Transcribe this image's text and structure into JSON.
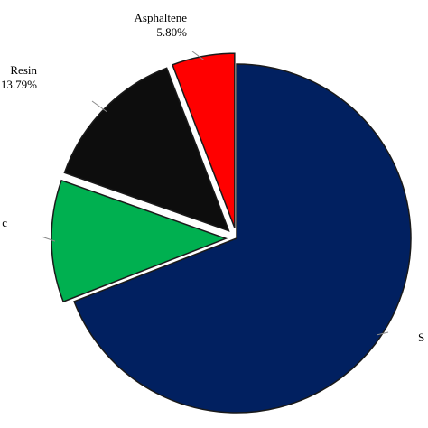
{
  "chart_data": {
    "type": "pie",
    "slices": [
      {
        "name": "Saturate",
        "value": 69.1,
        "label": "S",
        "value_label": "",
        "color": "#012060",
        "exploded": false
      },
      {
        "name": "Aromatic",
        "value": 11.31,
        "label": "c",
        "value_label": "",
        "color": "#00b050",
        "exploded": true
      },
      {
        "name": "Resin",
        "value": 13.79,
        "label": "Resin",
        "value_label": "13.79%",
        "color": "#0d0d0d",
        "exploded": true
      },
      {
        "name": "Asphaltene",
        "value": 5.8,
        "label": "Asphaltene",
        "value_label": "5.80%",
        "color": "#ff0000",
        "exploded": true
      }
    ],
    "title": "",
    "legend": "none"
  }
}
